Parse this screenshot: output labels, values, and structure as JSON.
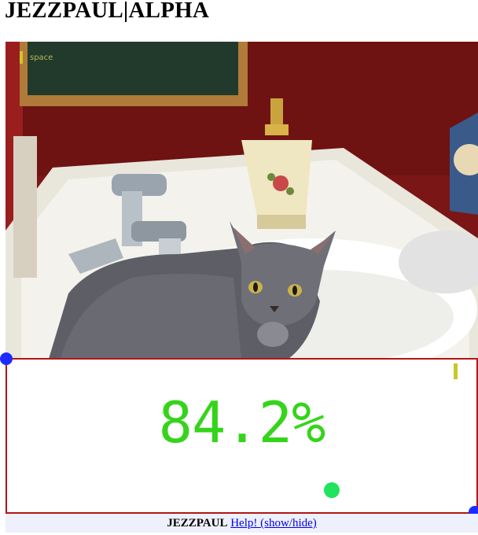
{
  "header": {
    "title": "JEZZPAUL|ALPHA"
  },
  "photo": {
    "subject": "cat-in-sink-photo",
    "key_indicator": {
      "label": "space",
      "color": "#c9c62a"
    }
  },
  "result": {
    "confidence": "84.2%",
    "text_color": "#35d41b",
    "border_color": "#b01616",
    "status_dot_color": "#22e35e"
  },
  "handles": {
    "color": "#1c2bff"
  },
  "footer": {
    "brand": "JEZZPAUL",
    "help_link": "Help! (show/hide)"
  }
}
